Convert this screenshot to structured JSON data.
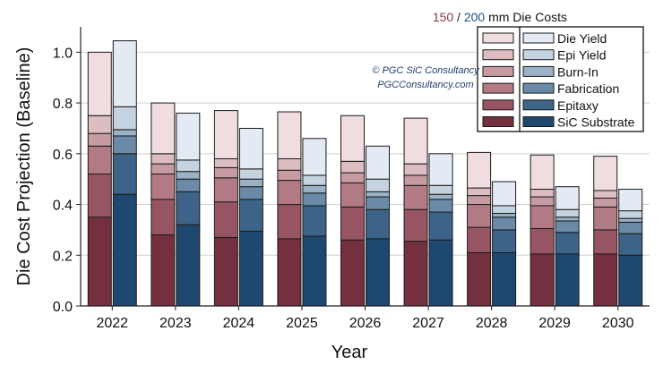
{
  "chart_data": {
    "type": "bar",
    "title": "",
    "xlabel": "Year",
    "ylabel": "Die Cost Projection (Baseline)",
    "ylim": [
      0,
      1.1
    ],
    "yticks": [
      "0.0",
      "0.2",
      "0.4",
      "0.6",
      "0.8",
      "1.0"
    ],
    "grid": true,
    "legend_position": "top-right",
    "legend_title": {
      "part1": "150",
      "sep": " / ",
      "part2": "200",
      "suffix": " mm Die Costs"
    },
    "watermark": {
      "line1": "© PGC SiC Consultancy",
      "line2": "PGCConsultancy.com"
    },
    "categories": [
      "2022",
      "2023",
      "2024",
      "2025",
      "2026",
      "2027",
      "2028",
      "2029",
      "2030"
    ],
    "component_labels": [
      "SiC Substrate",
      "Epitaxy",
      "Fabrication",
      "Burn-In",
      "Epi Yield",
      "Die Yield"
    ],
    "legend_order": [
      "Die Yield",
      "Epi Yield",
      "Burn-In",
      "Fabrication",
      "Epitaxy",
      "SiC Substrate"
    ],
    "colors": {
      "mm150": [
        "#75303f",
        "#975564",
        "#b27a84",
        "#c79ba2",
        "#dbbdc2",
        "#f0dde0"
      ],
      "mm200": [
        "#1f4870",
        "#3d6488",
        "#6a8aa8",
        "#9bb1c6",
        "#c5d3e1",
        "#e3eaf3"
      ]
    },
    "series": [
      {
        "name": "150 mm",
        "stack": [
          {
            "name": "SiC Substrate",
            "values": [
              0.35,
              0.28,
              0.27,
              0.265,
              0.26,
              0.255,
              0.21,
              0.205,
              0.205
            ]
          },
          {
            "name": "Epitaxy",
            "values": [
              0.17,
              0.14,
              0.14,
              0.135,
              0.13,
              0.125,
              0.1,
              0.1,
              0.095
            ]
          },
          {
            "name": "Fabrication",
            "values": [
              0.11,
              0.1,
              0.095,
              0.095,
              0.095,
              0.095,
              0.09,
              0.09,
              0.09
            ]
          },
          {
            "name": "Burn-In",
            "values": [
              0.05,
              0.04,
              0.04,
              0.04,
              0.04,
              0.04,
              0.035,
              0.035,
              0.035
            ]
          },
          {
            "name": "Epi Yield",
            "values": [
              0.07,
              0.04,
              0.035,
              0.045,
              0.045,
              0.045,
              0.03,
              0.03,
              0.03
            ]
          },
          {
            "name": "Die Yield",
            "values": [
              0.25,
              0.2,
              0.19,
              0.185,
              0.18,
              0.18,
              0.14,
              0.135,
              0.135
            ]
          }
        ]
      },
      {
        "name": "200 mm",
        "stack": [
          {
            "name": "SiC Substrate",
            "values": [
              0.44,
              0.32,
              0.295,
              0.275,
              0.265,
              0.26,
              0.21,
              0.205,
              0.2
            ]
          },
          {
            "name": "Epitaxy",
            "values": [
              0.16,
              0.13,
              0.125,
              0.12,
              0.115,
              0.11,
              0.09,
              0.085,
              0.085
            ]
          },
          {
            "name": "Fabrication",
            "values": [
              0.07,
              0.05,
              0.05,
              0.05,
              0.05,
              0.05,
              0.05,
              0.045,
              0.045
            ]
          },
          {
            "name": "Burn-In",
            "values": [
              0.025,
              0.03,
              0.03,
              0.03,
              0.02,
              0.02,
              0.015,
              0.015,
              0.015
            ]
          },
          {
            "name": "Epi Yield",
            "values": [
              0.09,
              0.045,
              0.04,
              0.04,
              0.05,
              0.035,
              0.03,
              0.03,
              0.03
            ]
          },
          {
            "name": "Die Yield",
            "values": [
              0.26,
              0.185,
              0.16,
              0.145,
              0.13,
              0.125,
              0.095,
              0.09,
              0.085
            ]
          }
        ]
      }
    ]
  }
}
